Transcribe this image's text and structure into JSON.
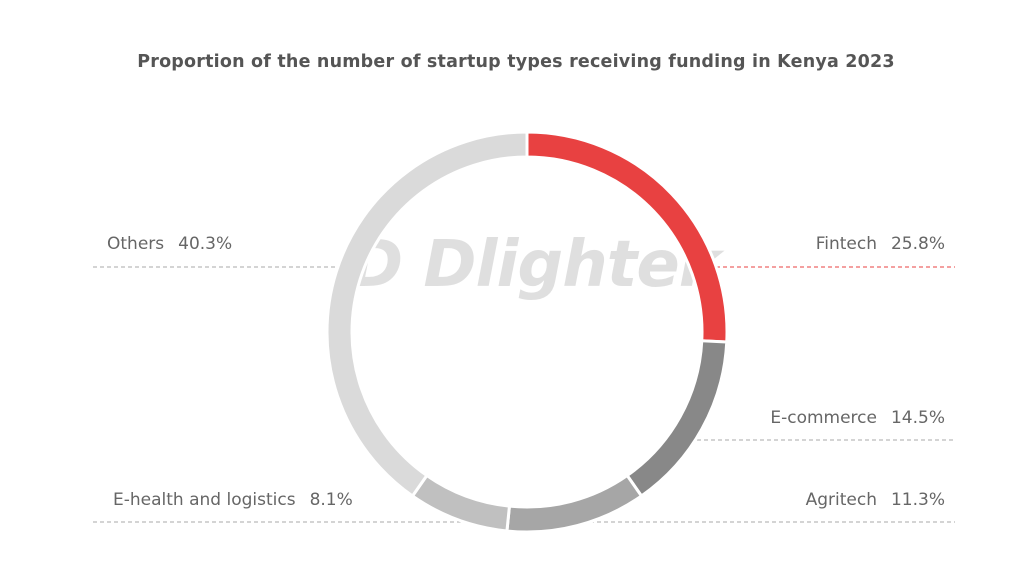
{
  "chart_data": {
    "type": "pie",
    "variant": "donut",
    "title": "Proportion of the number of startup types receiving funding in Kenya 2023",
    "unit": "%",
    "slices": [
      {
        "label": "Fintech",
        "value": 25.8,
        "value_label": "25.8%",
        "color": "#e84141",
        "line_color": "#e84141"
      },
      {
        "label": "E-commerce",
        "value": 14.5,
        "value_label": "14.5%",
        "color": "#888888",
        "line_color": "#aaaaaa"
      },
      {
        "label": "Agritech",
        "value": 11.3,
        "value_label": "11.3%",
        "color": "#a6a6a6",
        "line_color": "#aaaaaa"
      },
      {
        "label": "E-health and logistics",
        "value": 8.1,
        "value_label": "8.1%",
        "color": "#c0c0c0",
        "line_color": "#aaaaaa"
      },
      {
        "label": "Others",
        "value": 40.3,
        "value_label": "40.3%",
        "color": "#dadada",
        "line_color": "#aaaaaa"
      }
    ],
    "start_angle": "top",
    "direction": "clockwise"
  },
  "watermark": "Dlightek"
}
